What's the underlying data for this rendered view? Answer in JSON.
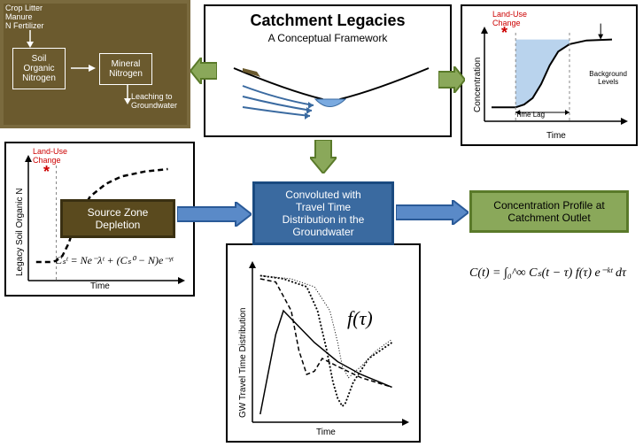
{
  "title": {
    "main": "Catchment Legacies",
    "sub": "A Conceptual Framework"
  },
  "soil": {
    "inputs": "Crop Litter\nManure\nN Fertilizer",
    "box1": "Soil\nOrganic\nNitrogen",
    "box2": "Mineral\nNitrogen",
    "leach": "Leaching to\nGroundwater",
    "bg": "#6b5a2e"
  },
  "srcZone": {
    "label": "Source Zone\nDepletion",
    "bg": "#5a4a1e",
    "border": "#3a3012"
  },
  "convBox": {
    "label": "Convoluted with\nTravel Time\nDistribution in the\nGroundwater",
    "bg": "#3a6aa0",
    "border": "#1a4a80"
  },
  "concBox": {
    "label": "Concentration Profile at\nCatchment Outlet",
    "bg": "#8aa85a",
    "border": "#5a7a2a"
  },
  "chartBL": {
    "xlabel": "Time",
    "ylabel": "Legacy Soil Organic N",
    "landUse": "Land-Use\nChange",
    "formula": "Cₛᵗ = Ne⁻λᵗ + (Cₛ⁰ − N)e⁻ᵞᵗ",
    "xlim": [
      0,
      100
    ],
    "ylim": [
      0,
      100
    ],
    "curve": [
      [
        5,
        15
      ],
      [
        10,
        15
      ],
      [
        15,
        15
      ],
      [
        18,
        16
      ],
      [
        22,
        20
      ],
      [
        26,
        30
      ],
      [
        30,
        45
      ],
      [
        35,
        58
      ],
      [
        40,
        68
      ],
      [
        50,
        78
      ],
      [
        60,
        84
      ],
      [
        75,
        88
      ],
      [
        90,
        90
      ]
    ],
    "dash": "6,4",
    "stroke": "#000",
    "stroke_width": 2.5,
    "vline_x": 18
  },
  "chartTR": {
    "xlabel": "Time",
    "ylabel": "Concentration",
    "landUse": "Land-Use\nChange",
    "bgLabel": "Background\nLevels",
    "timeLag": "Time Lag",
    "xlim": [
      0,
      100
    ],
    "ylim": [
      0,
      100
    ],
    "curve": [
      [
        5,
        15
      ],
      [
        15,
        15
      ],
      [
        22,
        15
      ],
      [
        28,
        18
      ],
      [
        34,
        25
      ],
      [
        40,
        40
      ],
      [
        46,
        60
      ],
      [
        52,
        75
      ],
      [
        60,
        83
      ],
      [
        72,
        87
      ],
      [
        90,
        88
      ]
    ],
    "fill": "#a8c8e8",
    "stroke": "#000",
    "stroke_width": 2,
    "vlines": [
      22,
      60
    ]
  },
  "chartBC": {
    "xlabel": "Time",
    "ylabel": "GW Travel Time Distribution",
    "ftau": "f(τ)",
    "xlim": [
      0,
      100
    ],
    "ylim": [
      0,
      100
    ],
    "curves": [
      {
        "pts": [
          [
            5,
            5
          ],
          [
            10,
            30
          ],
          [
            15,
            55
          ],
          [
            20,
            70
          ],
          [
            30,
            60
          ],
          [
            40,
            50
          ],
          [
            55,
            38
          ],
          [
            70,
            30
          ],
          [
            90,
            22
          ]
        ],
        "dash": "none",
        "w": 1.5
      },
      {
        "pts": [
          [
            5,
            90
          ],
          [
            15,
            88
          ],
          [
            25,
            70
          ],
          [
            30,
            45
          ],
          [
            35,
            30
          ],
          [
            40,
            32
          ],
          [
            45,
            40
          ],
          [
            55,
            35
          ],
          [
            70,
            28
          ],
          [
            90,
            22
          ]
        ],
        "dash": "5,3",
        "w": 1.5
      },
      {
        "pts": [
          [
            5,
            92
          ],
          [
            20,
            90
          ],
          [
            35,
            85
          ],
          [
            42,
            70
          ],
          [
            48,
            45
          ],
          [
            52,
            25
          ],
          [
            55,
            15
          ],
          [
            58,
            10
          ],
          [
            60,
            12
          ],
          [
            65,
            25
          ],
          [
            75,
            40
          ],
          [
            90,
            50
          ]
        ],
        "dash": "2,2",
        "w": 1.8
      },
      {
        "pts": [
          [
            5,
            92
          ],
          [
            25,
            90
          ],
          [
            40,
            85
          ],
          [
            50,
            70
          ],
          [
            55,
            50
          ],
          [
            58,
            35
          ],
          [
            62,
            28
          ],
          [
            70,
            35
          ],
          [
            80,
            45
          ],
          [
            90,
            52
          ]
        ],
        "dash": "1,2",
        "w": 1
      }
    ]
  },
  "formulaOutlet": "C(t) = ∫₀^∞ Cₛ(t − τ) f(τ) e⁻ᵏᵗ dτ",
  "arrows": {
    "green": "#8aa85a",
    "greenBorder": "#5a7a2a",
    "blue": "#5a8ac8",
    "blueBorder": "#2a5a98"
  }
}
